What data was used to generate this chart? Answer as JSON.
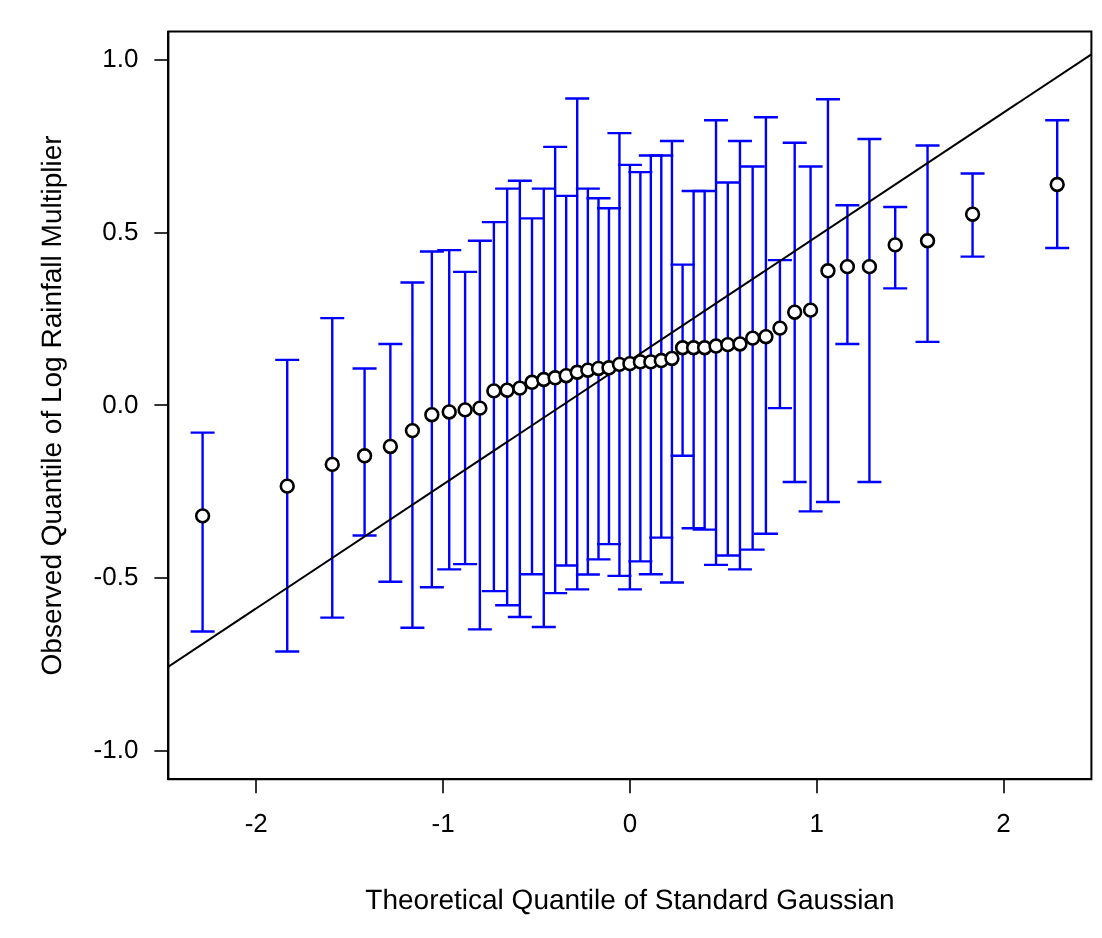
{
  "chart_data": {
    "type": "scatter",
    "xlabel": "Theoretical Quantile of Standard Gaussian",
    "ylabel": "Observed Quantile of Log Rainfall Multiplier",
    "xlim": [
      -2.47,
      2.47
    ],
    "xticks": [
      -2,
      -1,
      0,
      1,
      2
    ],
    "ylim": [
      -1.083,
      1.083
    ],
    "yticks": [
      {
        "value": -1,
        "label": "-1.0"
      },
      -0.5,
      {
        "value": 0,
        "label": "0.0"
      },
      0.5,
      {
        "value": 1,
        "label": "1.0"
      }
    ],
    "grid": false,
    "legend": false,
    "marker": "circle",
    "series": [
      {
        "color": "#000000",
        "x": [
          -2.287,
          -1.834,
          -1.593,
          -1.42,
          -1.282,
          -1.164,
          -1.06,
          -0.967,
          -0.882,
          -0.803,
          -0.728,
          -0.657,
          -0.589,
          -0.524,
          -0.461,
          -0.4,
          -0.341,
          -0.282,
          -0.225,
          -0.168,
          -0.112,
          -0.056,
          0,
          0.056,
          0.112,
          0.168,
          0.225,
          0.282,
          0.341,
          0.4,
          0.461,
          0.524,
          0.589,
          0.657,
          0.728,
          0.803,
          0.882,
          0.967,
          1.06,
          1.164,
          1.282,
          1.42,
          1.593,
          1.834,
          2.287
        ],
        "values": [
          -0.32,
          -0.234,
          -0.171,
          -0.146,
          -0.119,
          -0.073,
          -0.027,
          -0.019,
          -0.013,
          -0.008,
          0.042,
          0.044,
          0.05,
          0.067,
          0.075,
          0.08,
          0.086,
          0.096,
          0.102,
          0.107,
          0.109,
          0.119,
          0.121,
          0.126,
          0.126,
          0.13,
          0.136,
          0.167,
          0.167,
          0.167,
          0.172,
          0.176,
          0.178,
          0.195,
          0.199,
          0.224,
          0.27,
          0.276,
          0.39,
          0.402,
          0.402,
          0.465,
          0.477,
          0.554,
          0.64
        ],
        "errors": [
          [
            -0.655,
            -0.079
          ],
          [
            -0.713,
            0.132
          ],
          [
            -0.615,
            0.253
          ],
          [
            -0.377,
            0.107
          ],
          [
            -0.511,
            0.178
          ],
          [
            -0.644,
            0.356
          ],
          [
            -0.527,
            0.446
          ],
          [
            -0.475,
            0.45
          ],
          [
            -0.46,
            0.387
          ],
          [
            -0.649,
            0.477
          ],
          [
            -0.538,
            0.531
          ],
          [
            -0.579,
            0.628
          ],
          [
            -0.613,
            0.651
          ],
          [
            -0.489,
            0.542
          ],
          [
            -0.642,
            0.628
          ],
          [
            -0.544,
            0.749
          ],
          [
            -0.464,
            0.607
          ],
          [
            -0.533,
            0.889
          ],
          [
            -0.49,
            0.628
          ],
          [
            -0.446,
            0.6
          ],
          [
            -0.402,
            0.571
          ],
          [
            -0.494,
            0.789
          ],
          [
            -0.533,
            0.697
          ],
          [
            -0.452,
            0.676
          ],
          [
            -0.489,
            0.724
          ],
          [
            -0.383,
            0.724
          ],
          [
            -0.513,
            0.766
          ],
          [
            -0.146,
            0.408
          ],
          [
            -0.356,
            0.621
          ],
          [
            -0.36,
            0.621
          ],
          [
            -0.462,
            0.826
          ],
          [
            -0.435,
            0.646
          ],
          [
            -0.475,
            0.766
          ],
          [
            -0.418,
            0.692
          ],
          [
            -0.372,
            0.835
          ],
          [
            -0.008,
            0.421
          ],
          [
            -0.222,
            0.761
          ],
          [
            -0.307,
            0.692
          ],
          [
            -0.28,
            0.887
          ],
          [
            0.178,
            0.58
          ],
          [
            -0.222,
            0.772
          ],
          [
            0.339,
            0.575
          ],
          [
            0.184,
            0.753
          ],
          [
            0.431,
            0.672
          ],
          [
            0.456,
            0.826
          ]
        ]
      },
      {
        "type": "line",
        "color": "#000000",
        "marker": "none",
        "line_style": "solid",
        "x": [
          -2.47,
          2.47
        ],
        "values": [
          -0.757,
          1.017
        ]
      }
    ]
  }
}
